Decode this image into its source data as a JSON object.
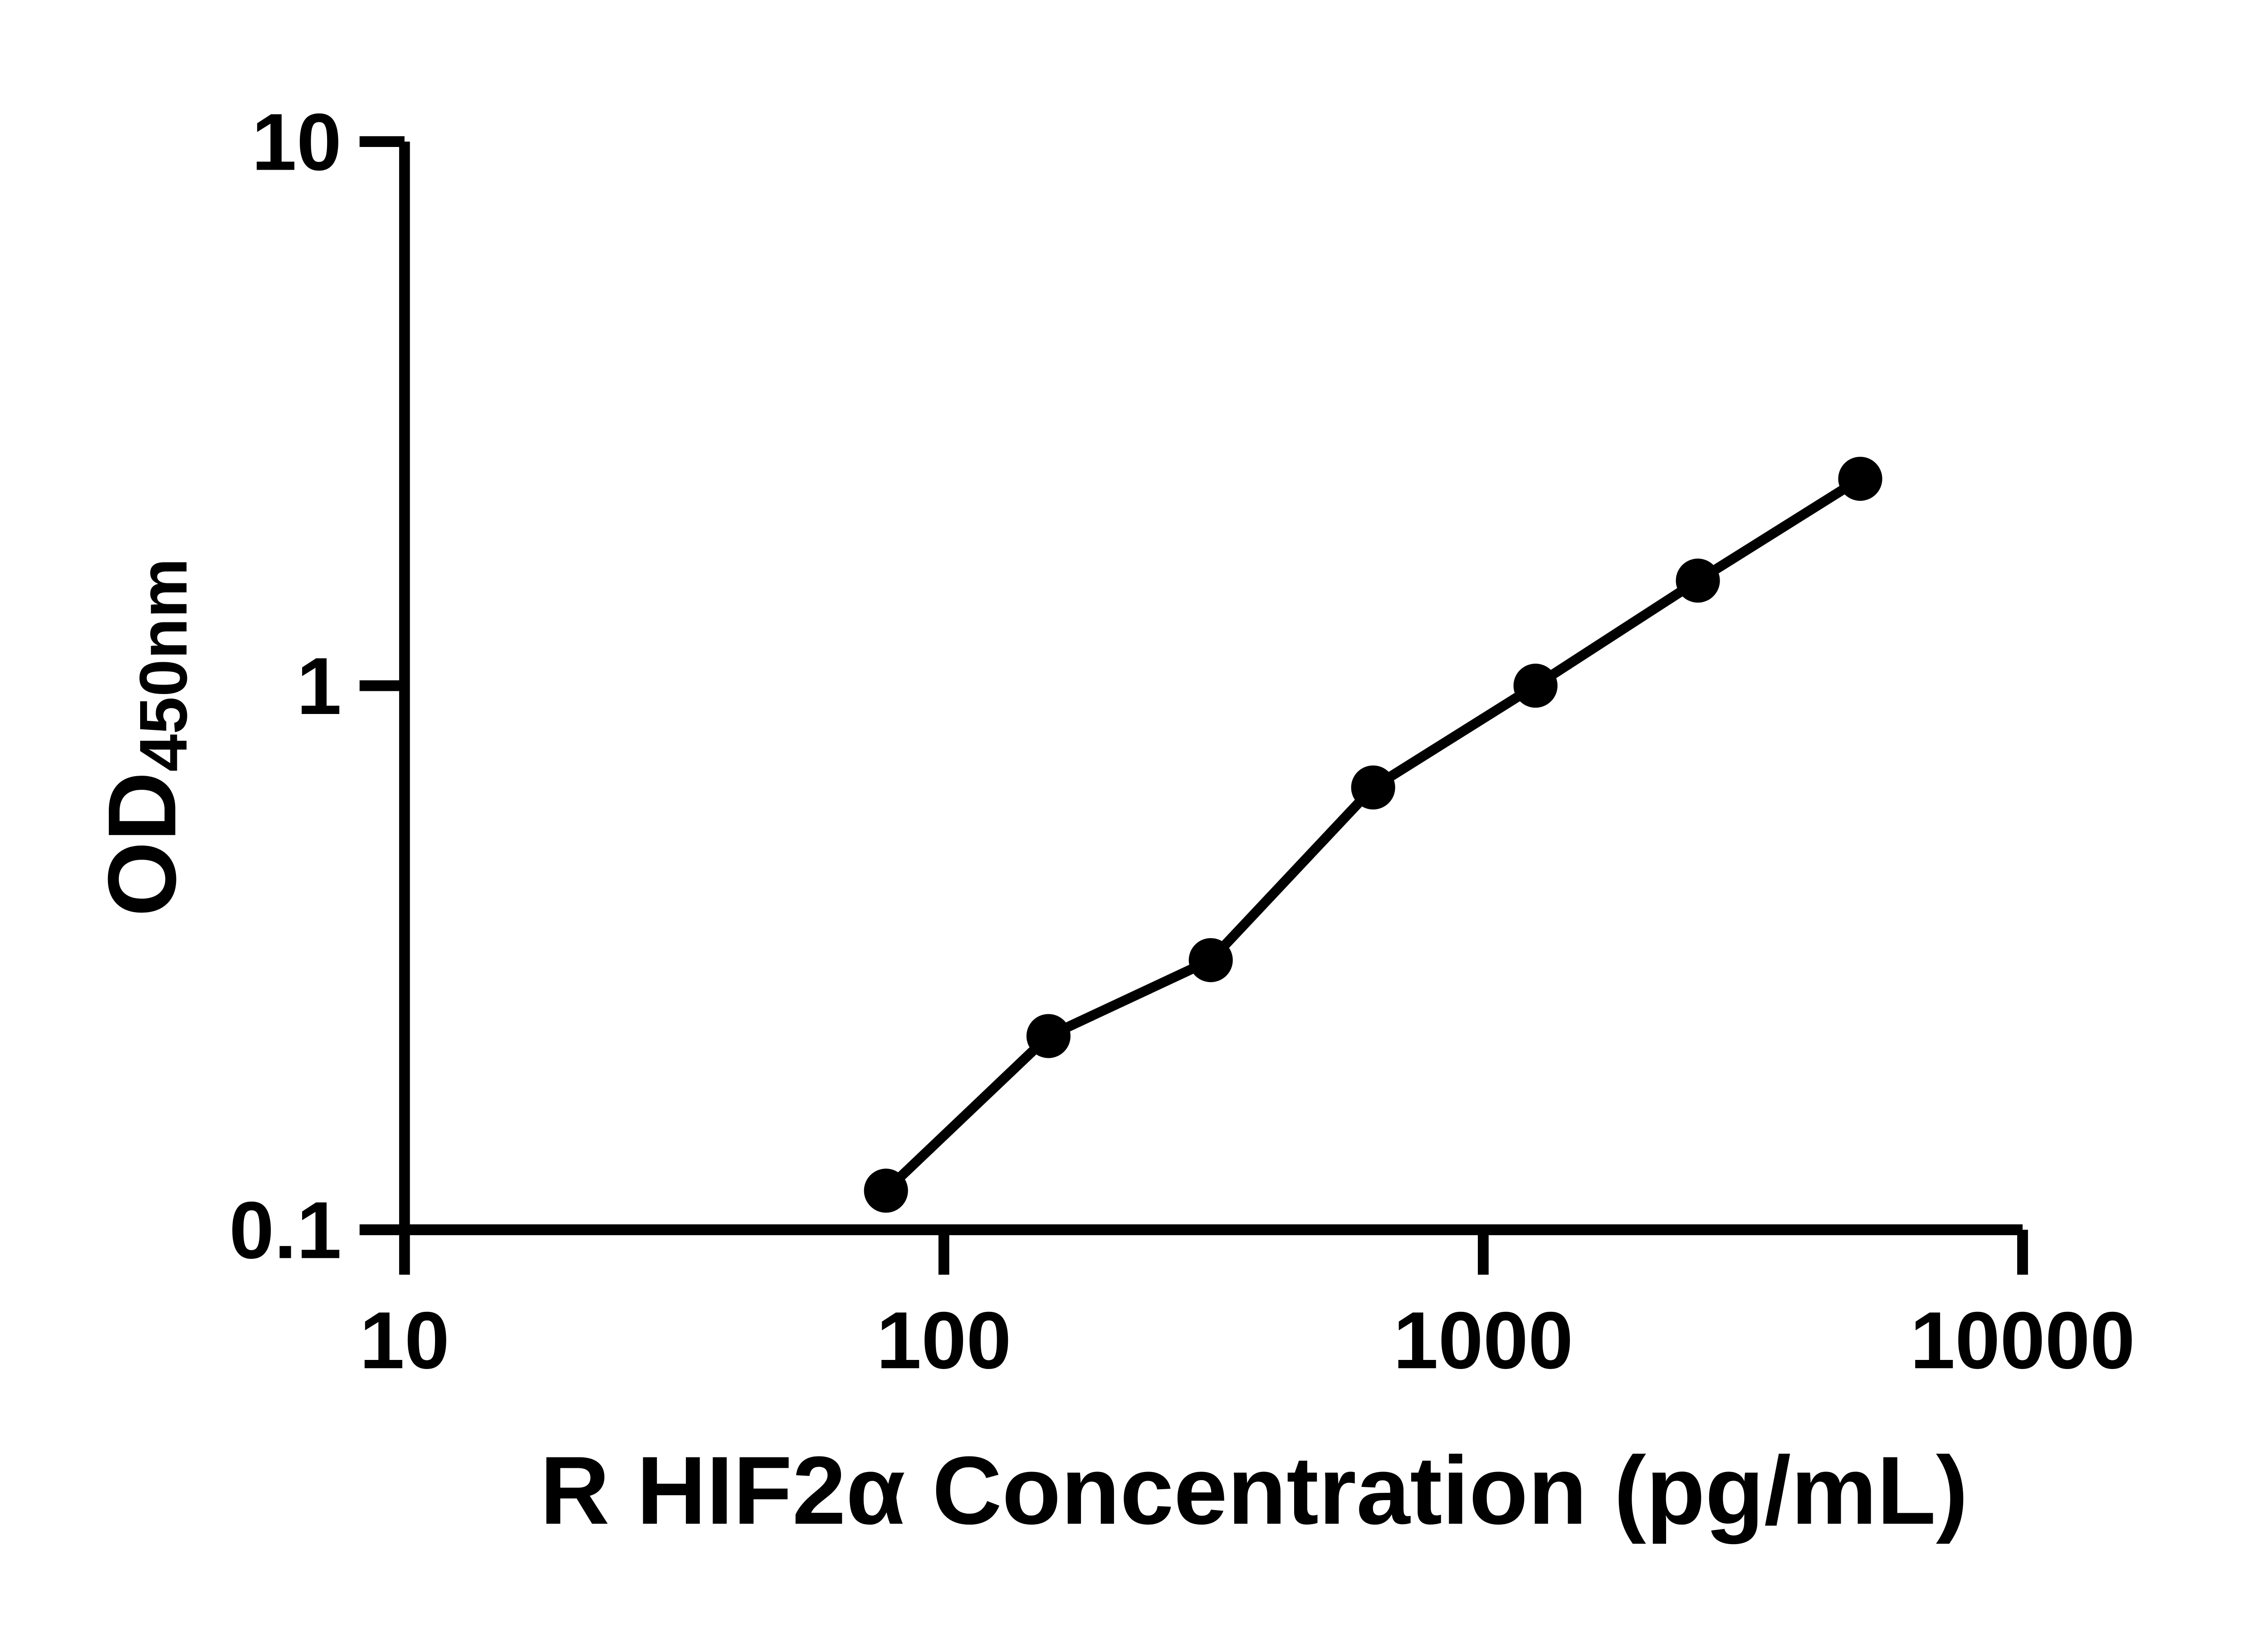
{
  "figure": {
    "background": "#ffffff",
    "ink": "#000000"
  },
  "chart_data": {
    "type": "line",
    "series_name": "standard-curve",
    "x": [
      78.1,
      156.3,
      312.5,
      625,
      1250,
      2500,
      5000
    ],
    "y": [
      0.118,
      0.227,
      0.313,
      0.65,
      1.0,
      1.56,
      2.4
    ],
    "xlabel": "R HIF2α Concentration (pg/mL)",
    "ylabel_main": "OD",
    "ylabel_sub": "450nm",
    "xscale": "log",
    "yscale": "log",
    "xlim": [
      10,
      10000
    ],
    "ylim": [
      0.1,
      10
    ],
    "x_ticks": [
      "10",
      "100",
      "1000",
      "10000"
    ],
    "y_ticks": [
      "0.1",
      "1",
      "10"
    ],
    "grid": false,
    "legend": "none",
    "marker": "filled-circle",
    "line_color": "#000000",
    "marker_color": "#000000",
    "text_color": "#000000"
  }
}
